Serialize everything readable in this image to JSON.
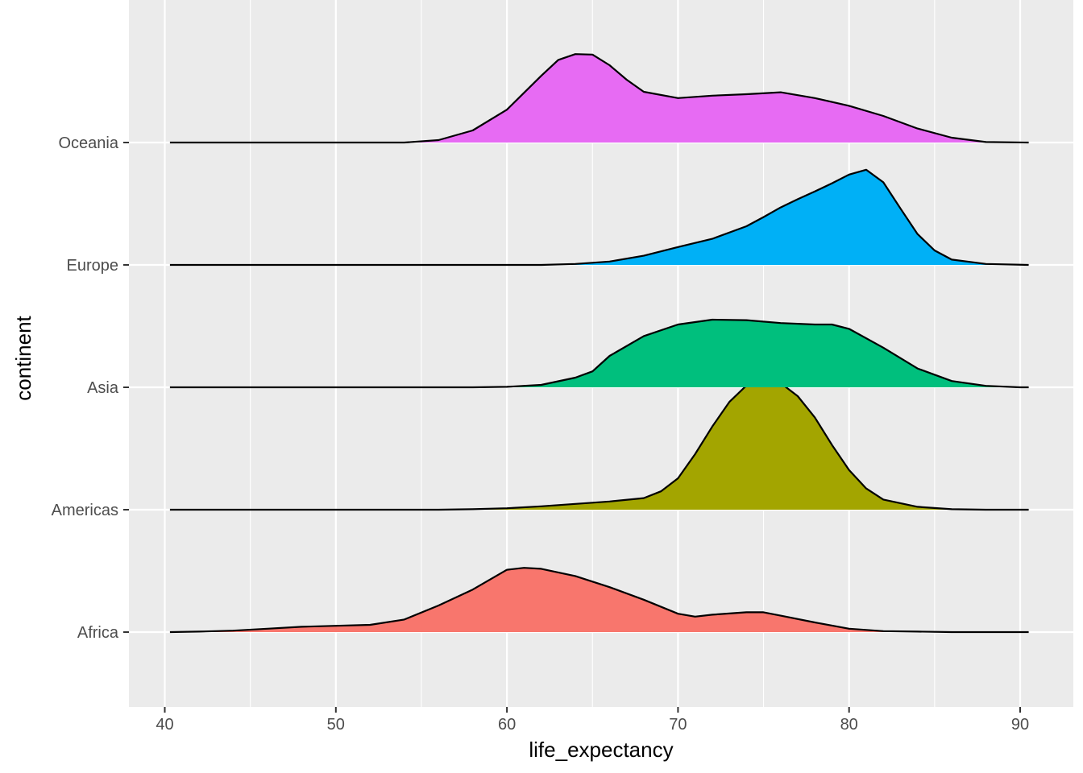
{
  "chart_data": {
    "type": "ridgeline",
    "xlabel": "life_expectancy",
    "ylabel": "continent",
    "xlim": [
      38,
      92.5
    ],
    "x_ticks": [
      40,
      50,
      60,
      70,
      80,
      90
    ],
    "x_minor_ticks": [
      45,
      55,
      65,
      75,
      85
    ],
    "grid": true,
    "categories": [
      "Africa",
      "Americas",
      "Asia",
      "Europe",
      "Oceania"
    ],
    "x_range": [
      40.3,
      90.5
    ],
    "series": [
      {
        "name": "Africa",
        "color": "#F8766D",
        "density": [
          [
            40.3,
            0
          ],
          [
            42,
            0.01
          ],
          [
            44,
            0.03
          ],
          [
            46,
            0.07
          ],
          [
            48,
            0.11
          ],
          [
            50,
            0.13
          ],
          [
            52,
            0.15
          ],
          [
            54,
            0.26
          ],
          [
            56,
            0.55
          ],
          [
            58,
            0.88
          ],
          [
            60,
            1.29
          ],
          [
            61,
            1.33
          ],
          [
            62,
            1.31
          ],
          [
            64,
            1.16
          ],
          [
            66,
            0.93
          ],
          [
            68,
            0.67
          ],
          [
            70,
            0.38
          ],
          [
            71,
            0.32
          ],
          [
            72,
            0.36
          ],
          [
            74,
            0.41
          ],
          [
            75,
            0.41
          ],
          [
            76,
            0.34
          ],
          [
            78,
            0.2
          ],
          [
            80,
            0.07
          ],
          [
            82,
            0.02
          ],
          [
            84,
            0.01
          ],
          [
            86,
            0
          ],
          [
            90.5,
            0
          ]
        ]
      },
      {
        "name": "Americas",
        "color": "#A3A500",
        "density": [
          [
            40.3,
            0
          ],
          [
            56,
            0
          ],
          [
            58,
            0.01
          ],
          [
            60,
            0.03
          ],
          [
            62,
            0.07
          ],
          [
            64,
            0.12
          ],
          [
            66,
            0.17
          ],
          [
            68,
            0.24
          ],
          [
            69,
            0.38
          ],
          [
            70,
            0.65
          ],
          [
            71,
            1.15
          ],
          [
            72,
            1.72
          ],
          [
            73,
            2.23
          ],
          [
            74,
            2.57
          ],
          [
            75,
            2.69
          ],
          [
            76,
            2.62
          ],
          [
            77,
            2.35
          ],
          [
            78,
            1.91
          ],
          [
            79,
            1.34
          ],
          [
            80,
            0.82
          ],
          [
            81,
            0.44
          ],
          [
            82,
            0.21
          ],
          [
            84,
            0.06
          ],
          [
            86,
            0.01
          ],
          [
            88,
            0
          ],
          [
            90.5,
            0
          ]
        ]
      },
      {
        "name": "Asia",
        "color": "#00BF7D",
        "density": [
          [
            40.3,
            0
          ],
          [
            58,
            0
          ],
          [
            60,
            0.01
          ],
          [
            62,
            0.05
          ],
          [
            64,
            0.2
          ],
          [
            65,
            0.33
          ],
          [
            66,
            0.65
          ],
          [
            68,
            1.06
          ],
          [
            70,
            1.3
          ],
          [
            72,
            1.4
          ],
          [
            74,
            1.39
          ],
          [
            76,
            1.33
          ],
          [
            78,
            1.3
          ],
          [
            79,
            1.3
          ],
          [
            80,
            1.21
          ],
          [
            82,
            0.82
          ],
          [
            84,
            0.39
          ],
          [
            86,
            0.13
          ],
          [
            88,
            0.03
          ],
          [
            90,
            0
          ],
          [
            90.5,
            0
          ]
        ]
      },
      {
        "name": "Europe",
        "color": "#00B0F6",
        "density": [
          [
            40.3,
            0
          ],
          [
            62,
            0
          ],
          [
            64,
            0.02
          ],
          [
            66,
            0.07
          ],
          [
            68,
            0.19
          ],
          [
            70,
            0.37
          ],
          [
            72,
            0.54
          ],
          [
            74,
            0.8
          ],
          [
            75,
            0.99
          ],
          [
            76,
            1.19
          ],
          [
            77,
            1.36
          ],
          [
            78,
            1.52
          ],
          [
            79,
            1.69
          ],
          [
            80,
            1.87
          ],
          [
            81,
            1.97
          ],
          [
            82,
            1.71
          ],
          [
            83,
            1.17
          ],
          [
            84,
            0.64
          ],
          [
            85,
            0.3
          ],
          [
            86,
            0.11
          ],
          [
            88,
            0.02
          ],
          [
            90.5,
            0
          ]
        ]
      },
      {
        "name": "Oceania",
        "color": "#E76BF3",
        "density": [
          [
            40.3,
            0
          ],
          [
            50,
            0
          ],
          [
            54,
            0
          ],
          [
            56,
            0.05
          ],
          [
            58,
            0.25
          ],
          [
            60,
            0.68
          ],
          [
            62,
            1.38
          ],
          [
            63,
            1.71
          ],
          [
            64,
            1.83
          ],
          [
            65,
            1.82
          ],
          [
            66,
            1.6
          ],
          [
            67,
            1.3
          ],
          [
            68,
            1.05
          ],
          [
            70,
            0.92
          ],
          [
            72,
            0.97
          ],
          [
            74,
            1.0
          ],
          [
            76,
            1.04
          ],
          [
            78,
            0.92
          ],
          [
            80,
            0.76
          ],
          [
            82,
            0.55
          ],
          [
            84,
            0.29
          ],
          [
            86,
            0.1
          ],
          [
            88,
            0.01
          ],
          [
            90.5,
            0
          ]
        ]
      }
    ]
  }
}
